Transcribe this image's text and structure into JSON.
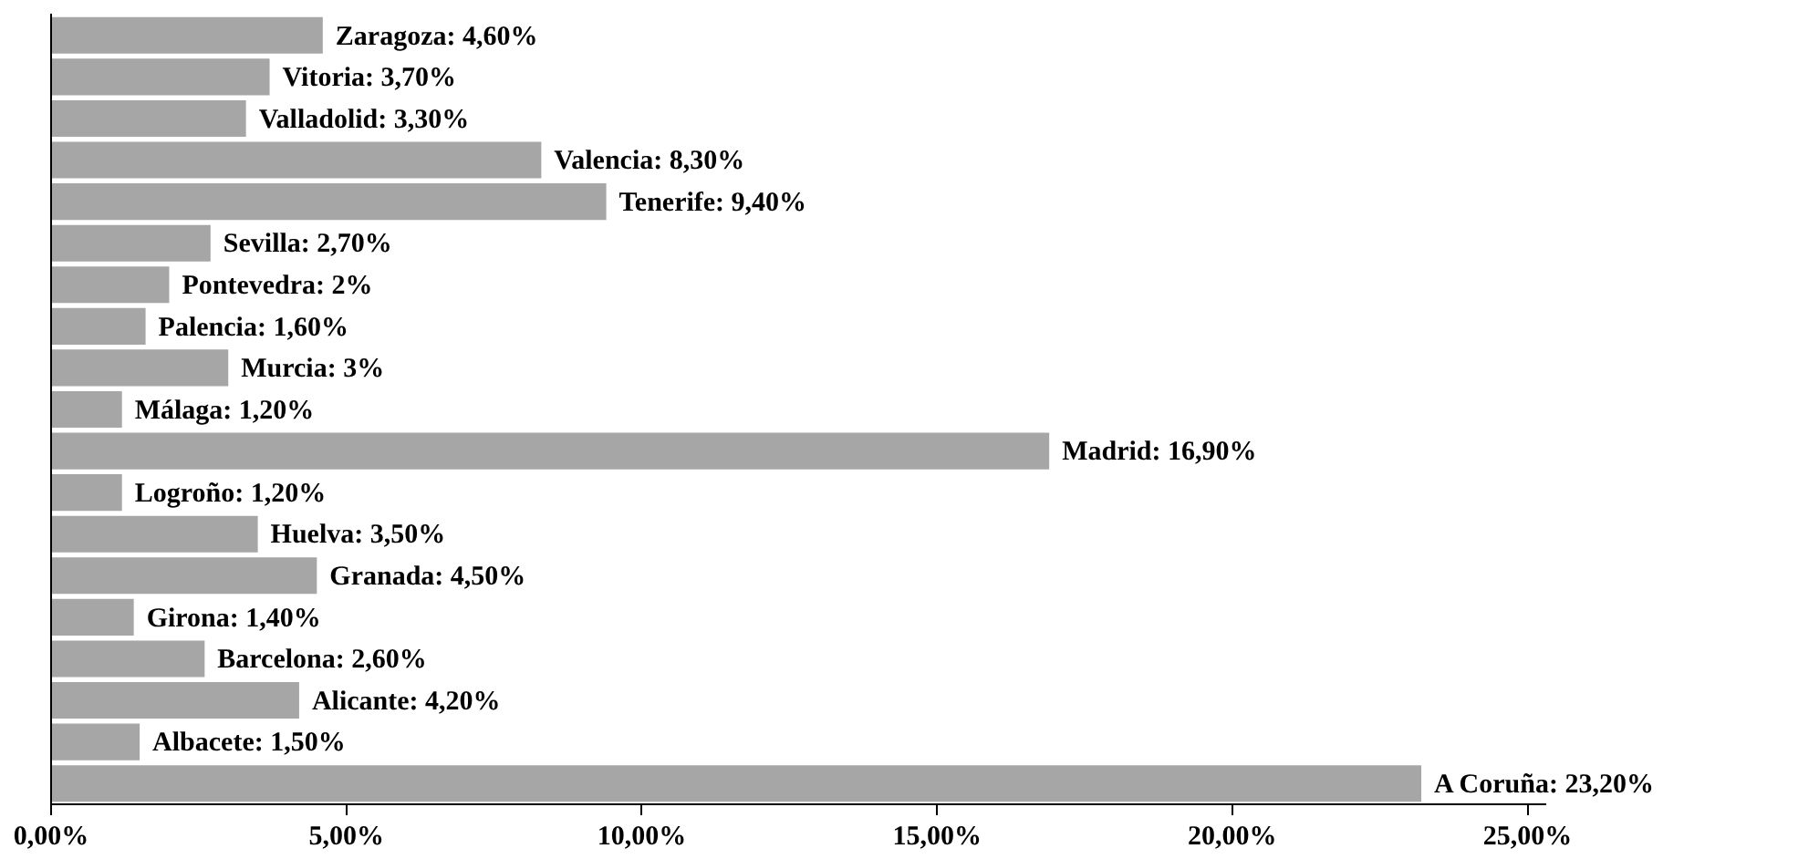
{
  "chart_data": {
    "type": "bar",
    "orientation": "horizontal",
    "categories": [
      null,
      null,
      null,
      null,
      null,
      null,
      null,
      null,
      null,
      null,
      null,
      null,
      null,
      null,
      null,
      null,
      null,
      null,
      null
    ],
    "values": [
      4.6,
      3.7,
      3.3,
      8.3,
      9.4,
      2.7,
      2,
      1.6,
      3,
      1.2,
      16.9,
      1.2,
      3.5,
      4.5,
      1.4,
      2.6,
      4.2,
      1.5,
      23.2
    ],
    "value_labels": [
      "Zaragoza: 4,60%",
      "Vitoria: 3,70%",
      "Valladolid: 3,30%",
      "Valencia: 8,30%",
      "Tenerife: 9,40%",
      "Sevilla: 2,70%",
      "Pontevedra: 2%",
      "Palencia: 1,60%",
      "Murcia: 3%",
      "Málaga: 1,20%",
      "Madrid: 16,90%",
      "Logroño: 1,20%",
      "Huelva: 3,50%",
      "Granada: 4,50%",
      "Girona: 1,40%",
      "Barcelona: 2,60%",
      "Alicante: 4,20%",
      "Albacete: 1,50%",
      "A Coruña: 23,20%"
    ],
    "color": "#a6a6a6",
    "xlim": [
      0,
      25.3
    ],
    "xticks": [
      {
        "value": 0,
        "label": "0,00%"
      },
      {
        "value": 5,
        "label": "5,00%"
      },
      {
        "value": 10,
        "label": "10,00%"
      },
      {
        "value": 15,
        "label": "15,00%"
      },
      {
        "value": 20,
        "label": "20,00%"
      },
      {
        "value": 25,
        "label": "25,00%"
      }
    ],
    "tick_labels": "x",
    "grid": false,
    "legend": false
  }
}
